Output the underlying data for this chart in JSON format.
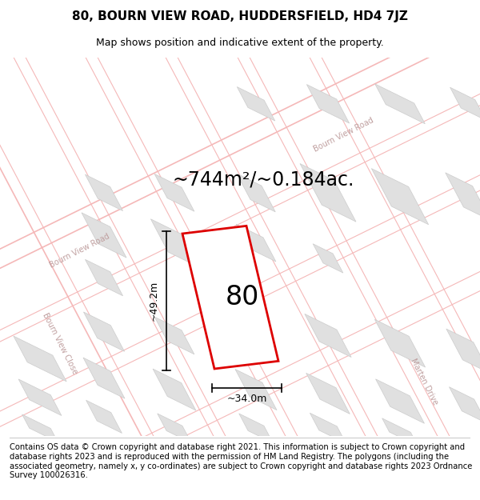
{
  "title": "80, BOURN VIEW ROAD, HUDDERSFIELD, HD4 7JZ",
  "subtitle": "Map shows position and indicative extent of the property.",
  "area_text": "~744m²/~0.184ac.",
  "number_label": "80",
  "width_label": "~34.0m",
  "height_label": "~49.2m",
  "footer_text": "Contains OS data © Crown copyright and database right 2021. This information is subject to Crown copyright and database rights 2023 and is reproduced with the permission of HM Land Registry. The polygons (including the associated geometry, namely x, y co-ordinates) are subject to Crown copyright and database rights 2023 Ordnance Survey 100026316.",
  "bg_color": "#ffffff",
  "map_bg_color": "#ffffff",
  "road_color": "#f5b8b8",
  "building_color": "#e0e0e0",
  "building_edge_color": "#cccccc",
  "highlight_color": "#dd0000",
  "road_label_color": "#c0a0a0",
  "title_fontsize": 11,
  "subtitle_fontsize": 9,
  "area_fontsize": 17,
  "number_fontsize": 24,
  "dim_fontsize": 9,
  "road_label_fontsize": 7,
  "footer_fontsize": 7.2,
  "road_lw": 0.8,
  "road_lw_main": 1.2
}
